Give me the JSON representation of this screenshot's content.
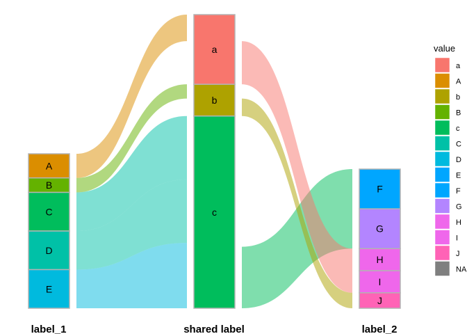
{
  "colors": {
    "a": "#F8766D",
    "A": "#DB8E00",
    "b": "#AEA200",
    "B": "#64B200",
    "c": "#00BD5C",
    "C": "#00C1A7",
    "D": "#00BADE",
    "E": "#00A6FF",
    "F": "#B385FF",
    "G": "#EF67EB",
    "H": "#FF63B6",
    "I": "#FF63B6",
    "J": "#FF63B6",
    "NA": "#7F7F7F"
  },
  "chart_data": {
    "type": "alluvial",
    "axes": [
      "label_1",
      "shared label",
      "label_2"
    ],
    "strata": {
      "label_1": [
        {
          "name": "A",
          "value": 1
        },
        {
          "name": "B",
          "value": 0.6
        },
        {
          "name": "C",
          "value": 1.6
        },
        {
          "name": "D",
          "value": 1.6
        },
        {
          "name": "E",
          "value": 1.6
        }
      ],
      "shared label": [
        {
          "name": "a",
          "value": 3.3
        },
        {
          "name": "b",
          "value": 1.5
        },
        {
          "name": "c",
          "value": 9.1
        }
      ],
      "label_2": [
        {
          "name": "F",
          "value": 1.8
        },
        {
          "name": "G",
          "value": 1.8
        },
        {
          "name": "H",
          "value": 1.0
        },
        {
          "name": "I",
          "value": 1.0
        },
        {
          "name": "J",
          "value": 0.7
        }
      ]
    },
    "legend": {
      "title": "value",
      "entries": [
        "a",
        "A",
        "b",
        "B",
        "c",
        "C",
        "D",
        "E",
        "F",
        "G",
        "H",
        "I",
        "J",
        "NA"
      ],
      "position": "right"
    }
  }
}
